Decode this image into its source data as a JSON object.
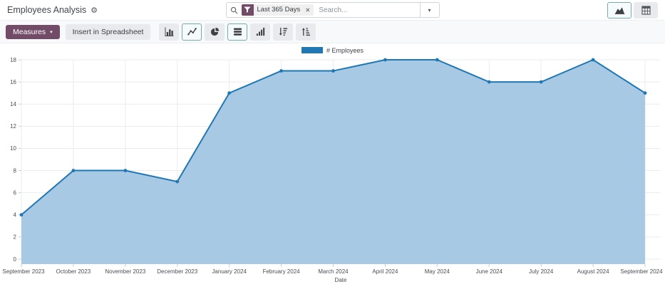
{
  "header": {
    "title": "Employees Analysis",
    "search": {
      "facet_label": "Last 365 Days",
      "remove_label": "✕",
      "placeholder": "Search..."
    }
  },
  "icons": {
    "gear": "⚙",
    "caret_down": "▾"
  },
  "toolbar": {
    "measures_label": "Measures",
    "insert_spreadsheet_label": "Insert in Spreadsheet",
    "chart_type_buttons": [
      "bar",
      "line",
      "pie",
      "stacked",
      "cumulative",
      "sort-descending",
      "sort-ascending"
    ],
    "active_buttons": [
      "line",
      "stacked"
    ],
    "active_view": "graph"
  },
  "chart_data": {
    "type": "area",
    "title": "",
    "categories": [
      "September 2023",
      "October 2023",
      "November 2023",
      "December 2023",
      "January 2024",
      "February 2024",
      "March 2024",
      "April 2024",
      "May 2024",
      "June 2024",
      "July 2024",
      "August 2024",
      "September 2024"
    ],
    "series": [
      {
        "name": "# Employees",
        "values": [
          4,
          8,
          8,
          7,
          15,
          17,
          17,
          18,
          18,
          16,
          16,
          18,
          15
        ]
      }
    ],
    "xlabel": "Date",
    "ylabel": "",
    "ylim": [
      0,
      18
    ],
    "ytick_step": 2,
    "legend_position": "top",
    "grid": true
  },
  "colors": {
    "accent": "#714B67",
    "selected_border": "#76abae",
    "line": "#1f77b4",
    "fill": "#a3c6e3",
    "grid": "#e9ebed"
  }
}
